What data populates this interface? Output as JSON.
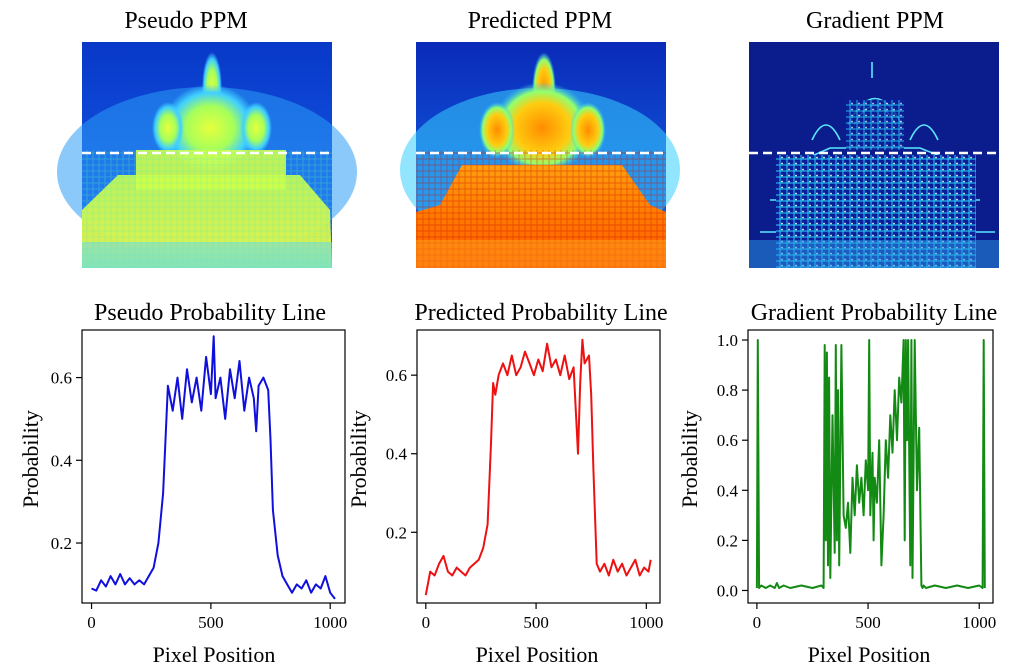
{
  "figure": {
    "map_titles": [
      "Pseudo PPM",
      "Predicted PPM",
      "Gradient PPM"
    ],
    "heatmap_style": [
      "soft",
      "hot",
      "edges"
    ],
    "guide_line": "dashed white horizontal line marking the sampled row"
  },
  "chart_data": [
    {
      "type": "line",
      "title": "Pseudo Probability Line",
      "xlabel": "Pixel Position",
      "ylabel": "Probability",
      "color": "#1010dd",
      "xlim": [
        -40,
        1062
      ],
      "ylim": [
        0.055,
        0.715
      ],
      "xticks": [
        0,
        500,
        1000
      ],
      "yticks": [
        0.2,
        0.4,
        0.6
      ],
      "x": [
        0,
        20,
        40,
        60,
        80,
        100,
        120,
        140,
        160,
        180,
        200,
        220,
        240,
        260,
        280,
        300,
        310,
        320,
        340,
        360,
        380,
        400,
        420,
        440,
        460,
        480,
        500,
        512,
        520,
        540,
        560,
        580,
        600,
        620,
        640,
        660,
        680,
        690,
        700,
        720,
        740,
        750,
        760,
        780,
        800,
        820,
        840,
        860,
        880,
        900,
        920,
        940,
        960,
        980,
        1000,
        1020
      ],
      "y": [
        0.09,
        0.085,
        0.11,
        0.095,
        0.12,
        0.1,
        0.125,
        0.1,
        0.115,
        0.1,
        0.11,
        0.1,
        0.12,
        0.14,
        0.2,
        0.32,
        0.45,
        0.58,
        0.52,
        0.6,
        0.5,
        0.62,
        0.54,
        0.6,
        0.52,
        0.65,
        0.56,
        0.7,
        0.55,
        0.6,
        0.5,
        0.62,
        0.55,
        0.64,
        0.52,
        0.6,
        0.55,
        0.47,
        0.58,
        0.6,
        0.57,
        0.45,
        0.28,
        0.17,
        0.12,
        0.1,
        0.08,
        0.1,
        0.09,
        0.11,
        0.08,
        0.1,
        0.09,
        0.12,
        0.08,
        0.065
      ]
    },
    {
      "type": "line",
      "title": "Predicted Probability Line",
      "xlabel": "Pixel Position",
      "ylabel": "Probability",
      "color": "#ee1111",
      "xlim": [
        -40,
        1062
      ],
      "ylim": [
        0.02,
        0.715
      ],
      "xticks": [
        0,
        500,
        1000
      ],
      "yticks": [
        0.2,
        0.4,
        0.6
      ],
      "x": [
        0,
        10,
        20,
        40,
        60,
        80,
        100,
        120,
        140,
        160,
        180,
        200,
        220,
        240,
        260,
        280,
        295,
        305,
        315,
        330,
        350,
        370,
        390,
        410,
        430,
        450,
        470,
        490,
        510,
        530,
        550,
        570,
        590,
        610,
        630,
        650,
        670,
        690,
        700,
        710,
        720,
        740,
        750,
        760,
        775,
        790,
        810,
        830,
        850,
        870,
        890,
        910,
        930,
        950,
        970,
        990,
        1010,
        1020
      ],
      "y": [
        0.04,
        0.07,
        0.1,
        0.09,
        0.12,
        0.14,
        0.1,
        0.09,
        0.11,
        0.1,
        0.09,
        0.11,
        0.12,
        0.13,
        0.16,
        0.22,
        0.42,
        0.58,
        0.55,
        0.6,
        0.63,
        0.6,
        0.65,
        0.6,
        0.62,
        0.66,
        0.63,
        0.6,
        0.64,
        0.61,
        0.68,
        0.62,
        0.64,
        0.6,
        0.65,
        0.59,
        0.62,
        0.4,
        0.58,
        0.69,
        0.63,
        0.65,
        0.55,
        0.36,
        0.12,
        0.1,
        0.12,
        0.09,
        0.13,
        0.1,
        0.12,
        0.09,
        0.11,
        0.13,
        0.09,
        0.11,
        0.1,
        0.13
      ]
    },
    {
      "type": "line",
      "title": "Gradient Probability Line",
      "xlabel": "Pixel Position",
      "ylabel": "Probability",
      "color": "#138a13",
      "xlim": [
        -40,
        1062
      ],
      "ylim": [
        -0.05,
        1.04
      ],
      "xticks": [
        0,
        500,
        1000
      ],
      "yticks": [
        0.0,
        0.2,
        0.4,
        0.6,
        0.8,
        1.0
      ],
      "x": [
        0,
        4,
        10,
        20,
        40,
        60,
        80,
        90,
        100,
        120,
        150,
        200,
        250,
        290,
        300,
        305,
        310,
        315,
        320,
        325,
        330,
        340,
        350,
        355,
        360,
        365,
        370,
        380,
        390,
        400,
        410,
        420,
        430,
        440,
        450,
        460,
        470,
        480,
        490,
        500,
        505,
        510,
        520,
        525,
        530,
        540,
        550,
        560,
        570,
        580,
        590,
        600,
        610,
        620,
        630,
        640,
        650,
        660,
        665,
        670,
        675,
        680,
        690,
        695,
        700,
        710,
        720,
        730,
        740,
        745,
        750,
        760,
        800,
        850,
        900,
        950,
        1000,
        1015,
        1020,
        1025
      ],
      "y": [
        0.01,
        1.0,
        0.01,
        0.02,
        0.01,
        0.02,
        0.01,
        0.03,
        0.01,
        0.02,
        0.01,
        0.02,
        0.01,
        0.02,
        0.01,
        0.98,
        0.2,
        0.95,
        0.1,
        0.85,
        0.05,
        0.7,
        0.15,
        0.98,
        0.2,
        0.8,
        0.1,
        0.98,
        0.3,
        0.25,
        0.35,
        0.15,
        0.45,
        0.3,
        0.5,
        0.35,
        0.45,
        0.3,
        0.52,
        0.4,
        1.0,
        0.3,
        0.55,
        0.2,
        0.45,
        0.35,
        0.6,
        0.1,
        0.3,
        0.6,
        0.45,
        0.7,
        0.55,
        0.8,
        0.6,
        0.85,
        0.75,
        1.0,
        0.2,
        1.0,
        0.6,
        1.0,
        0.1,
        1.0,
        0.05,
        1.0,
        0.4,
        0.65,
        0.02,
        0.01,
        0.02,
        0.01,
        0.02,
        0.01,
        0.02,
        0.01,
        0.02,
        0.01,
        1.0,
        0.01
      ]
    }
  ]
}
